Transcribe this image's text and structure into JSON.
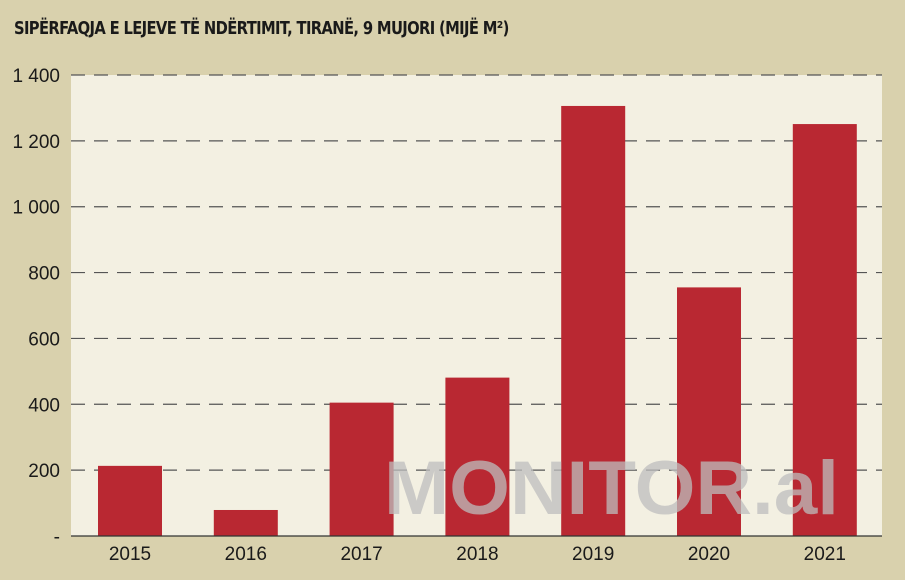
{
  "chart_data": {
    "type": "bar",
    "title": "SIPËRFAQJA E LEJEVE TË NDËRTIMIT, TIRANË, 9 MUJORI (MIJË M²)",
    "categories": [
      "2015",
      "2016",
      "2017",
      "2018",
      "2019",
      "2020",
      "2021"
    ],
    "values": [
      213,
      79,
      405,
      481,
      1306,
      755,
      1251
    ],
    "xlabel": "",
    "ylabel": "",
    "ylim": [
      0,
      1400
    ],
    "yticks": [
      0,
      200,
      400,
      600,
      800,
      1000,
      1200,
      1400
    ],
    "ytick_labels": [
      "-",
      "200",
      "400",
      "600",
      "800",
      "1 000",
      "1 200",
      "1 400"
    ],
    "grid": "horizontal dashed",
    "bar_color": "#b92832",
    "watermark": "MONITOR.al"
  }
}
